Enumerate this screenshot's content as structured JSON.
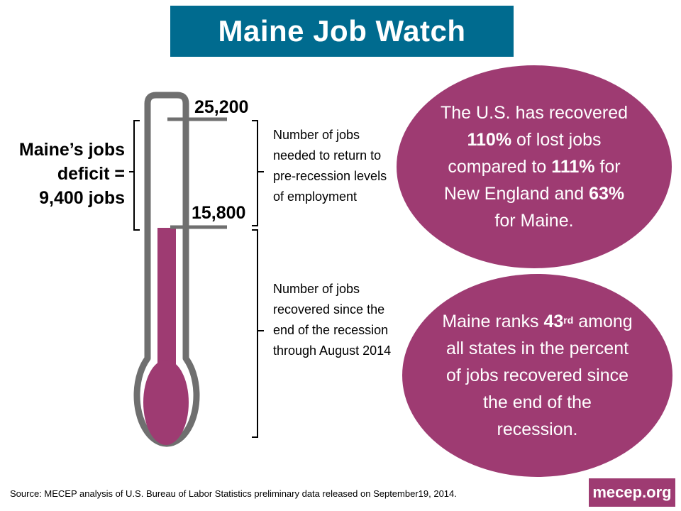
{
  "title": "Maine Job Watch",
  "thermometer": {
    "top_value": "25,200",
    "current_value": "15,800",
    "top_value_num": 25200,
    "current_value_num": 15800,
    "fill_color": "#9e3b72",
    "outline_color": "#6f6f6f"
  },
  "deficit": {
    "line1": "Maine’s jobs",
    "line2": "deficit =",
    "line3": "9,400 jobs"
  },
  "descriptions": {
    "needed": "Number of jobs needed to return to pre-recession levels of employment",
    "recovered": "Number of jobs recovered since the end of the recession through August 2014"
  },
  "oval1": {
    "t1": "The U.S. has recovered ",
    "b1": "110%",
    "t2": " of lost jobs compared to ",
    "b2": "111%",
    "t3": " for New England and ",
    "b3": "63%",
    "t4": " for Maine."
  },
  "oval2": {
    "t1": "Maine ranks ",
    "b1": "43",
    "sup": "rd",
    "t2": " among all states in the percent of jobs recovered since the end of the recession."
  },
  "source": "Source:  MECEP analysis of U.S. Bureau of Labor Statistics preliminary data released on September19,  2014.",
  "badge": "mecep.org",
  "colors": {
    "banner": "#006b8f",
    "accent": "#9e3b72"
  }
}
